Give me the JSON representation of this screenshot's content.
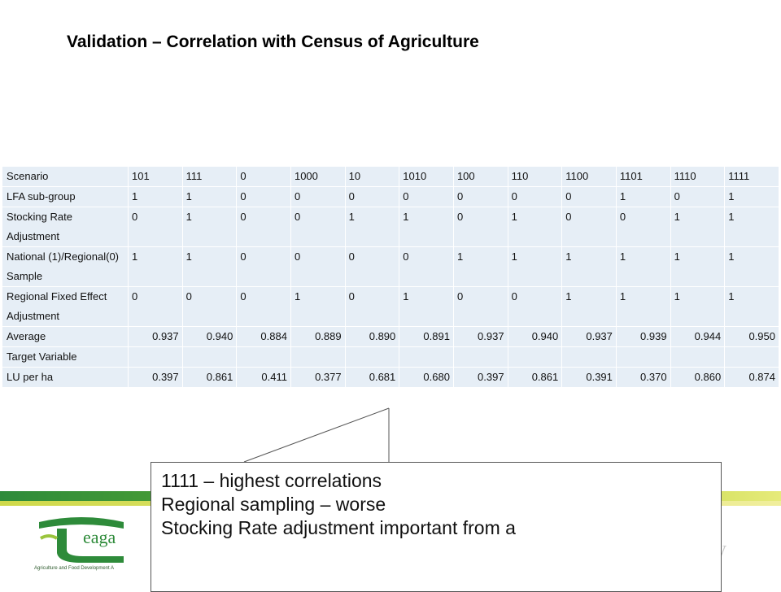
{
  "title": "Validation – Correlation with Census of Agriculture",
  "table": {
    "rows": [
      {
        "label": "Scenario",
        "cells": [
          "101",
          "111",
          "0",
          "1000",
          "10",
          "1010",
          "100",
          "110",
          "1100",
          "1101",
          "1110",
          "1111"
        ]
      },
      {
        "label": "LFA sub-group",
        "cells": [
          "1",
          "1",
          "0",
          "0",
          "0",
          "0",
          "0",
          "0",
          "0",
          "1",
          "0",
          "1"
        ]
      },
      {
        "label": "Stocking Rate Adjustment",
        "cells": [
          "0",
          "1",
          "0",
          "0",
          "1",
          "1",
          "0",
          "1",
          "0",
          "0",
          "1",
          "1"
        ]
      },
      {
        "label": "National (1)/Regional(0) Sample",
        "cells": [
          "1",
          "1",
          "0",
          "0",
          "0",
          "0",
          "1",
          "1",
          "1",
          "1",
          "1",
          "1"
        ]
      },
      {
        "label": "Regional Fixed Effect Adjustment",
        "cells": [
          "0",
          "0",
          "0",
          "1",
          "0",
          "1",
          "0",
          "0",
          "1",
          "1",
          "1",
          "1"
        ]
      },
      {
        "label": "Average",
        "cells": [
          "0.937",
          "0.940",
          "0.884",
          "0.889",
          "0.890",
          "0.891",
          "0.937",
          "0.940",
          "0.937",
          "0.939",
          "0.944",
          "0.950"
        ]
      },
      {
        "label": "Target Variable",
        "cells": [
          "",
          "",
          "",
          "",
          "",
          "",
          "",
          "",
          "",
          "",
          "",
          ""
        ]
      },
      {
        "label": "LU per ha",
        "cells": [
          "0.397",
          "0.861",
          "0.411",
          "0.377",
          "0.681",
          "0.680",
          "0.397",
          "0.861",
          "0.391",
          "0.370",
          "0.860",
          "0.874"
        ]
      }
    ]
  },
  "callout": {
    "lines": [
      "1111 – highest correlations",
      "Regional sampling – worse",
      "Stocking Rate adjustment important from a"
    ]
  },
  "footer": {
    "logo_icon": "teagasc-logo-icon",
    "logo_text": "eaga",
    "logo_subtitle": "Agriculture and Food Development A",
    "faint_char": "y"
  },
  "colors": {
    "cell_bg": "#e6eef6",
    "band_green": "#2e8b3a",
    "band_lime": "#b6d334"
  }
}
